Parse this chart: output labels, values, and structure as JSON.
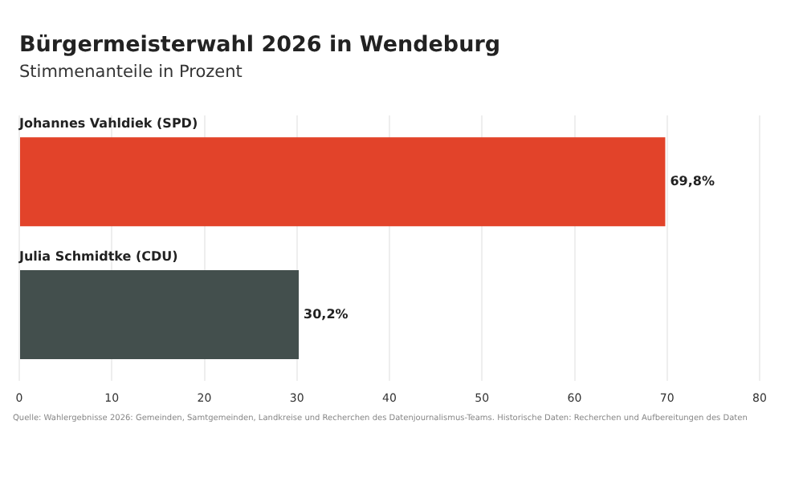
{
  "chart_data": {
    "type": "bar",
    "orientation": "horizontal",
    "title": "Bürgermeisterwahl 2026 in Wendeburg",
    "subtitle": "Stimmenanteile in Prozent",
    "categories": [
      "Johannes Vahldiek (SPD)",
      "Julia Schmidtke (CDU)"
    ],
    "values": [
      69.8,
      30.2
    ],
    "colors": [
      "#e2432a",
      "#434f4d"
    ],
    "value_labels": [
      "69,8%",
      "30,2%"
    ],
    "xlim": [
      0,
      80
    ],
    "xticks": [
      0,
      10,
      20,
      30,
      40,
      50,
      60,
      70,
      80
    ],
    "grid": "x",
    "legend": false,
    "annotations": [
      "Quelle: Wahlergebnisse 2026: Gemeinden, Samtgemeinden, Landkreise und Recherchen des Datenjournalismus-Teams. Historische Daten: Recherchen und Aufbereitungen des Daten"
    ]
  }
}
